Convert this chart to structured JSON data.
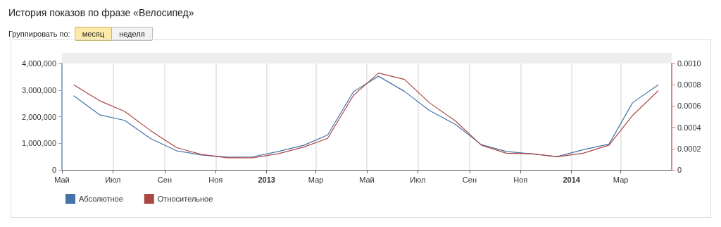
{
  "chart_data": {
    "type": "line",
    "title": "История показов по фразе «Велосипед»",
    "annotations": [
      "Группировать по:",
      "месяц",
      "неделя"
    ],
    "x": [
      "2012-05-15",
      "2012-06-15",
      "2012-07-15",
      "2012-08-15",
      "2012-09-15",
      "2012-10-15",
      "2012-11-15",
      "2012-12-15",
      "2013-01-15",
      "2013-02-15",
      "2013-03-15",
      "2013-04-15",
      "2013-05-15",
      "2013-06-15",
      "2013-07-15",
      "2013-08-15",
      "2013-09-15",
      "2013-10-15",
      "2013-11-15",
      "2013-12-15",
      "2014-01-15",
      "2014-02-15",
      "2014-03-15",
      "2014-04-15"
    ],
    "series": [
      {
        "name": "Абсолютное",
        "color": "#4572a7",
        "values": [
          2790000,
          2070000,
          1860000,
          1180000,
          720000,
          560000,
          480000,
          490000,
          690000,
          930000,
          1310000,
          2940000,
          3520000,
          2950000,
          2230000,
          1710000,
          950000,
          690000,
          600000,
          500000,
          760000,
          970000,
          2520000,
          3200000
        ]
      },
      {
        "name": "Относительное",
        "color": "#aa4643",
        "axis": "y2",
        "values": [
          0.0008,
          0.00065,
          0.00055,
          0.00037,
          0.00021,
          0.000145,
          0.000114,
          0.000114,
          0.000151,
          0.000216,
          0.000296,
          0.0007,
          0.00091,
          0.00085,
          0.00063,
          0.00046,
          0.000233,
          0.000156,
          0.000151,
          0.000123,
          0.000156,
          0.000233,
          0.00051,
          0.000745
        ]
      }
    ],
    "xlim": [
      "2012-05-01",
      "2014-05-01"
    ],
    "xticks": [
      {
        "value": "2012-05-01",
        "label": "Май"
      },
      {
        "value": "2012-07-01",
        "label": "Июл"
      },
      {
        "value": "2012-09-01",
        "label": "Сен"
      },
      {
        "value": "2012-11-01",
        "label": "Ноя"
      },
      {
        "value": "2013-01-01",
        "label": "2013"
      },
      {
        "value": "2013-03-01",
        "label": "Мар"
      },
      {
        "value": "2013-05-01",
        "label": "Май"
      },
      {
        "value": "2013-07-01",
        "label": "Июл"
      },
      {
        "value": "2013-09-01",
        "label": "Сен"
      },
      {
        "value": "2013-11-01",
        "label": "Ноя"
      },
      {
        "value": "2014-01-01",
        "label": "2014"
      },
      {
        "value": "2014-03-01",
        "label": "Мар"
      }
    ],
    "ylim": [
      0,
      4000000
    ],
    "yticks": [
      0,
      {
        "value": 1000000,
        "label": "1,000,000"
      },
      {
        "value": 2000000,
        "label": "2,000,000"
      },
      {
        "value": 3000000,
        "label": "3,000,000"
      },
      {
        "value": 4000000,
        "label": "4,000,000"
      }
    ],
    "y2lim": [
      0,
      0.001
    ],
    "y2ticks": [
      0,
      0.0002,
      0.0004,
      0.0006,
      0.0008,
      {
        "value": 0.001,
        "label": "0.0010"
      }
    ],
    "grid": "x",
    "legend": "bottom left",
    "marker": "none",
    "line_style": "solid"
  }
}
